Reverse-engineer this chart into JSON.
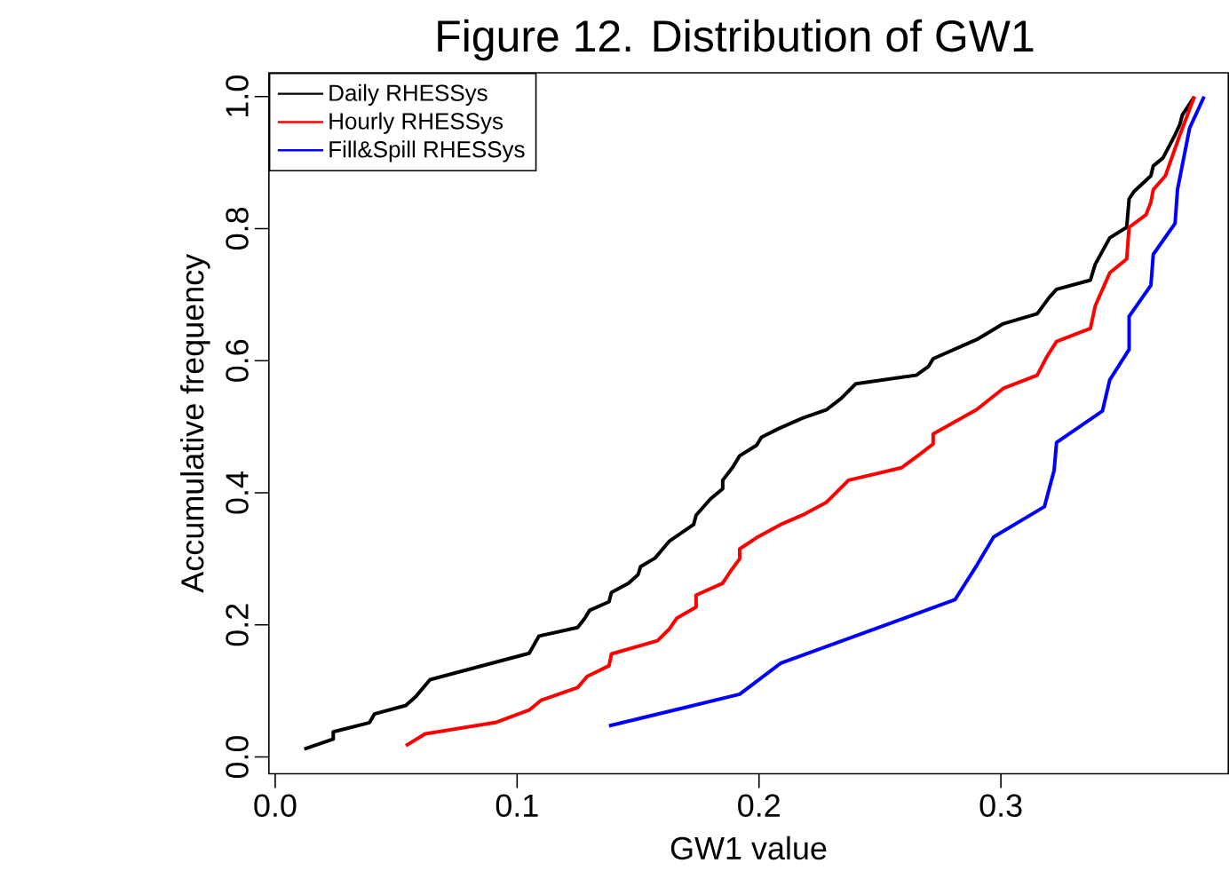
{
  "chart_data": {
    "type": "line",
    "title": "Figure 12. Distribution of GW1",
    "xlabel": "GW1 value",
    "ylabel": "Accumulative frequency",
    "xlim": [
      -0.0026,
      0.394
    ],
    "ylim": [
      -0.0255,
      1.036
    ],
    "xticks": [
      {
        "value": 0,
        "label": "0.0"
      },
      {
        "value": 0.1,
        "label": "0.1"
      },
      {
        "value": 0.2,
        "label": "0.2"
      },
      {
        "value": 0.3,
        "label": "0.3"
      }
    ],
    "yticks": [
      {
        "value": 0,
        "label": "0.0"
      },
      {
        "value": 0.2,
        "label": "0.2"
      },
      {
        "value": 0.4,
        "label": "0.4"
      },
      {
        "value": 0.6,
        "label": "0.6"
      },
      {
        "value": 0.8,
        "label": "0.8"
      },
      {
        "value": 1,
        "label": "1.0"
      }
    ],
    "grid": false,
    "legend": "top left",
    "marker": "none",
    "line_style": "solid",
    "series": [
      {
        "name": "Daily RHESSys",
        "color": "#000000",
        "x": [
          0.012,
          0.024,
          0.024,
          0.039,
          0.041,
          0.054,
          0.058,
          0.061,
          0.064,
          0.105,
          0.109,
          0.125,
          0.128,
          0.13,
          0.138,
          0.139,
          0.146,
          0.15,
          0.151,
          0.157,
          0.163,
          0.173,
          0.174,
          0.18,
          0.185,
          0.185,
          0.189,
          0.192,
          0.199,
          0.201,
          0.208,
          0.218,
          0.228,
          0.234,
          0.24,
          0.265,
          0.27,
          0.272,
          0.29,
          0.301,
          0.315,
          0.32,
          0.323,
          0.337,
          0.339,
          0.345,
          0.352,
          0.353,
          0.355,
          0.362,
          0.363,
          0.367,
          0.372,
          0.374,
          0.375,
          0.38
        ],
        "values": [
          0.012,
          0.027,
          0.038,
          0.052,
          0.065,
          0.078,
          0.091,
          0.104,
          0.117,
          0.157,
          0.183,
          0.196,
          0.21,
          0.222,
          0.235,
          0.249,
          0.263,
          0.276,
          0.288,
          0.301,
          0.327,
          0.352,
          0.366,
          0.391,
          0.406,
          0.419,
          0.438,
          0.456,
          0.472,
          0.484,
          0.497,
          0.513,
          0.526,
          0.543,
          0.565,
          0.578,
          0.591,
          0.603,
          0.632,
          0.656,
          0.671,
          0.696,
          0.708,
          0.722,
          0.746,
          0.786,
          0.802,
          0.845,
          0.856,
          0.88,
          0.895,
          0.907,
          0.942,
          0.958,
          0.972,
          1.0
        ]
      },
      {
        "name": "Hourly RHESSys",
        "color": "#ff0000",
        "x": [
          0.054,
          0.062,
          0.091,
          0.105,
          0.11,
          0.125,
          0.129,
          0.138,
          0.139,
          0.158,
          0.163,
          0.166,
          0.174,
          0.174,
          0.185,
          0.188,
          0.192,
          0.192,
          0.199,
          0.209,
          0.219,
          0.228,
          0.237,
          0.259,
          0.266,
          0.272,
          0.272,
          0.29,
          0.301,
          0.315,
          0.319,
          0.323,
          0.337,
          0.339,
          0.345,
          0.352,
          0.353,
          0.36,
          0.362,
          0.363,
          0.368,
          0.371,
          0.374,
          0.38
        ],
        "values": [
          0.017,
          0.035,
          0.052,
          0.071,
          0.086,
          0.105,
          0.122,
          0.138,
          0.156,
          0.176,
          0.194,
          0.21,
          0.227,
          0.245,
          0.263,
          0.28,
          0.3,
          0.315,
          0.332,
          0.352,
          0.368,
          0.386,
          0.419,
          0.438,
          0.457,
          0.474,
          0.489,
          0.526,
          0.558,
          0.578,
          0.606,
          0.629,
          0.649,
          0.683,
          0.733,
          0.754,
          0.802,
          0.821,
          0.84,
          0.859,
          0.88,
          0.911,
          0.942,
          1.0
        ]
      },
      {
        "name": "Fill&Spill RHESSys",
        "color": "#0000ff",
        "x": [
          0.138,
          0.192,
          0.209,
          0.281,
          0.29,
          0.297,
          0.318,
          0.322,
          0.323,
          0.342,
          0.345,
          0.353,
          0.353,
          0.362,
          0.363,
          0.372,
          0.373,
          0.378,
          0.384
        ],
        "values": [
          0.047,
          0.095,
          0.142,
          0.238,
          0.29,
          0.333,
          0.379,
          0.434,
          0.476,
          0.524,
          0.571,
          0.617,
          0.667,
          0.714,
          0.761,
          0.808,
          0.859,
          0.952,
          1.0
        ]
      }
    ]
  }
}
